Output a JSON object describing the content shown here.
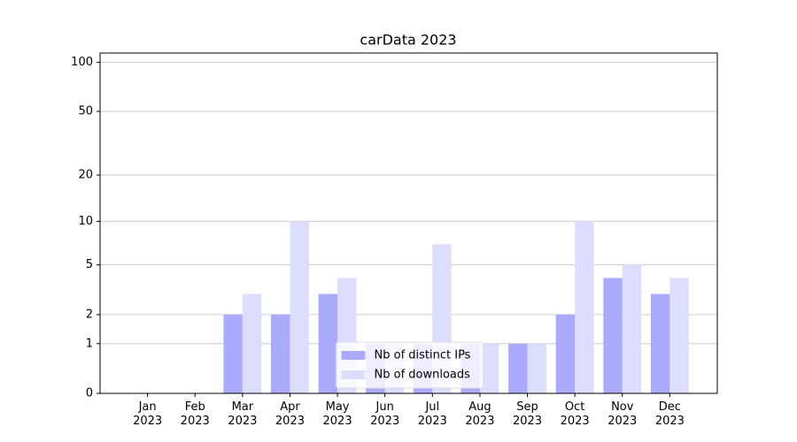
{
  "chart_data": {
    "type": "bar",
    "title": "carData 2023",
    "categories": [
      "Jan 2023",
      "Feb 2023",
      "Mar 2023",
      "Apr 2023",
      "May 2023",
      "Jun 2023",
      "Jul 2023",
      "Aug 2023",
      "Sep 2023",
      "Oct 2023",
      "Nov 2023",
      "Dec 2023"
    ],
    "series": [
      {
        "name": "Nb of distinct IPs",
        "color": "#aaaaff",
        "values": [
          0,
          0,
          2,
          2,
          3,
          1,
          1,
          1,
          1,
          2,
          4,
          3
        ]
      },
      {
        "name": "Nb of downloads",
        "color": "#ddddff",
        "values": [
          0,
          0,
          3,
          10,
          4,
          1,
          7,
          1,
          1,
          10,
          5,
          4
        ]
      }
    ],
    "ylim": [
      0,
      114
    ],
    "yticks": [
      0,
      1,
      2,
      5,
      10,
      20,
      50,
      100
    ],
    "yscale": "log1p",
    "grid": true,
    "legend": "lower center"
  }
}
